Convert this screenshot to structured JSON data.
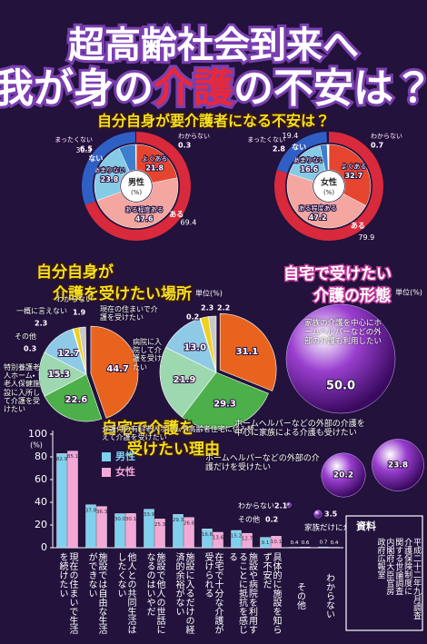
{
  "title": {
    "line1": "超高齢社会到来へ",
    "line2": [
      "我が身の",
      "介護",
      "の",
      "不安は？"
    ]
  },
  "chart_data": [
    {
      "type": "donut",
      "title": "自分自身が要介護者になる不安は？",
      "center_label": "男性",
      "unit": "(%)",
      "categories": [
        "よくある",
        "ある程度ある",
        "あまりない",
        "まったくない",
        "わからない"
      ],
      "values": [
        21.8,
        47.6,
        23.8,
        6.5,
        0.3
      ],
      "colors": [
        "#e5452f",
        "#f4a6a0",
        "#86cbe6",
        "#3d7fce",
        "#ffffff"
      ],
      "groups": [
        {
          "name": "ある",
          "value": 69.4,
          "color": "#d82a3c"
        },
        {
          "name": "ない",
          "value": 30.3,
          "color": "#2f5fc4"
        }
      ]
    },
    {
      "type": "donut",
      "center_label": "女性",
      "unit": "(%)",
      "categories": [
        "よくある",
        "ある程度ある",
        "あまりない",
        "まったくない",
        "わからない"
      ],
      "values": [
        32.7,
        47.2,
        16.6,
        2.8,
        0.7
      ],
      "colors": [
        "#e5452f",
        "#f4a6a0",
        "#86cbe6",
        "#3d7fce",
        "#ffffff"
      ],
      "groups": [
        {
          "name": "ある",
          "value": 79.9,
          "color": "#d82a3c"
        },
        {
          "name": "ない",
          "value": 19.4,
          "color": "#2f5fc4"
        }
      ]
    },
    {
      "type": "pie",
      "title": [
        "自分自身が",
        "介護を受けたい場所"
      ],
      "unit": "単位(%)",
      "categories": [
        "現在の住まいで介護を受けたい",
        "特別養護老人ホーム・老人保健施設に入所して介護を受けたい",
        "介護付の有料老人ホームや高齢者住宅に住み替えて介護を受けたい",
        "病院に入院して介護を受けたい",
        "その他",
        "わからない",
        "一概に言えない"
      ],
      "values": [
        44.7,
        22.6,
        15.3,
        12.7,
        0.3,
        1.9,
        2.3
      ],
      "colors": [
        "#e8641e",
        "#4caf4a",
        "#9ed8b0",
        "#8ecae6",
        "#ffffff",
        "#f0d020",
        "#c8c8c8"
      ]
    },
    {
      "type": "pie",
      "values": [
        31.1,
        29.3,
        21.9,
        13.0,
        0.2,
        2.3,
        2.2
      ],
      "value_labels": [
        "31.1",
        "29.3",
        "21.9",
        "13.0",
        "0.2",
        "2.3",
        "2.2"
      ],
      "colors": [
        "#e8641e",
        "#4caf4a",
        "#9ed8b0",
        "#8ecae6",
        "#ffffff",
        "#f0d020",
        "#c8c8c8"
      ]
    },
    {
      "type": "bubble",
      "title": [
        "自宅で受けたい",
        "介護の形態"
      ],
      "unit": "単位(%)",
      "categories": [
        "家族の介護を中心にホームヘルパーなどの外部の介護も利用したい",
        "ホームヘルパーなどの外部の介護を中心に家族による介護も受けたい",
        "ホームヘルパーなどの外部の介護だけを受けたい",
        "家族だけに介護されたい",
        "わからない",
        "その他"
      ],
      "values": [
        50.0,
        23.8,
        20.2,
        3.5,
        2.1,
        0.2
      ],
      "value_labels": [
        "50.0",
        "23.8",
        "20.2",
        "3.5",
        "2.1",
        "0.2"
      ],
      "color": "#9a3fd0"
    },
    {
      "type": "bar",
      "title": [
        "自宅で介護を",
        "受けたい理由"
      ],
      "y_unit": "(%)",
      "categories": [
        "現在の住まいで生活を続けたい",
        "施設では自由な生活ができない",
        "他人との共同生活はしたくない",
        "施設で他人の世話になるのはいやだ",
        "施設に入るだけの経済的余裕がない",
        "在宅で十分な介護が受けられる",
        "施設や病院を利用することに抵抗を感じる",
        "具体的に施設を知らず不安だ",
        "その他",
        "わからない"
      ],
      "series": [
        {
          "name": "男性",
          "color": "#7fd0ee",
          "values": [
            82.9,
            37.8,
            30.0,
            33.9,
            29.3,
            16.6,
            15.2,
            9.1,
            0.4,
            0.7
          ],
          "value_labels": [
            "82.9",
            "37.8",
            "30.0",
            "33.9",
            "29.3",
            "16.6",
            "15.2",
            "9.1",
            "0.4",
            "0.7"
          ]
        },
        {
          "name": "女性",
          "color": "#f4a8d8",
          "values": [
            85.1,
            36.3,
            30.1,
            25.3,
            26.6,
            13.6,
            12.7,
            10.1,
            0.6,
            0.4
          ]
        }
      ],
      "ylim": [
        0,
        100
      ],
      "yticks": [
        0,
        20,
        40,
        60,
        80,
        100
      ]
    }
  ],
  "source": {
    "heading": "資料",
    "lines": [
      "平成二十二年九月調査",
      "介護保険制度に",
      "関する世論調査",
      "内閣府大臣官房",
      "政府広報室"
    ]
  }
}
